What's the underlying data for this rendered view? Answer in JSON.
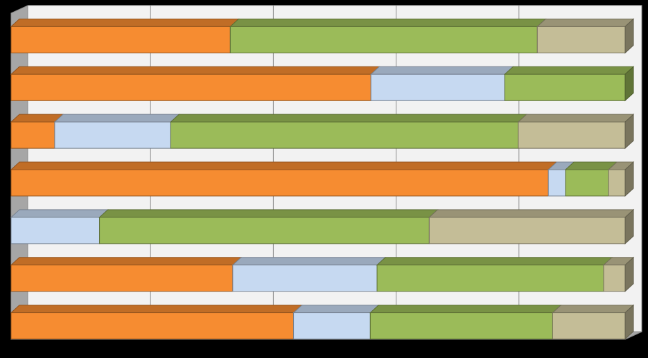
{
  "chart_data": {
    "type": "bar",
    "orientation": "horizontal",
    "stacked": "100%",
    "three_d": true,
    "grid": true,
    "legend": "none",
    "xlim": [
      0,
      100
    ],
    "colors": {
      "orange": "#F68C31",
      "light_blue": "#C6D9F1",
      "green": "#9BBB59",
      "tan": "#C4BD97",
      "wall": "#F2F2F2",
      "floor": "#A6A6A6",
      "background": "#000000"
    },
    "series": [
      {
        "color_key": "orange",
        "values": [
          35.7,
          58.6,
          7.1,
          87.5,
          0.0,
          36.1,
          46.0
        ]
      },
      {
        "color_key": "light_blue",
        "values": [
          0.0,
          21.8,
          18.9,
          2.8,
          14.4,
          23.5,
          12.5
        ]
      },
      {
        "color_key": "green",
        "values": [
          50.0,
          19.6,
          56.6,
          7.0,
          53.7,
          36.9,
          29.7
        ]
      },
      {
        "color_key": "tan",
        "values": [
          14.3,
          0.0,
          17.4,
          2.7,
          31.9,
          3.5,
          11.8
        ]
      }
    ]
  }
}
